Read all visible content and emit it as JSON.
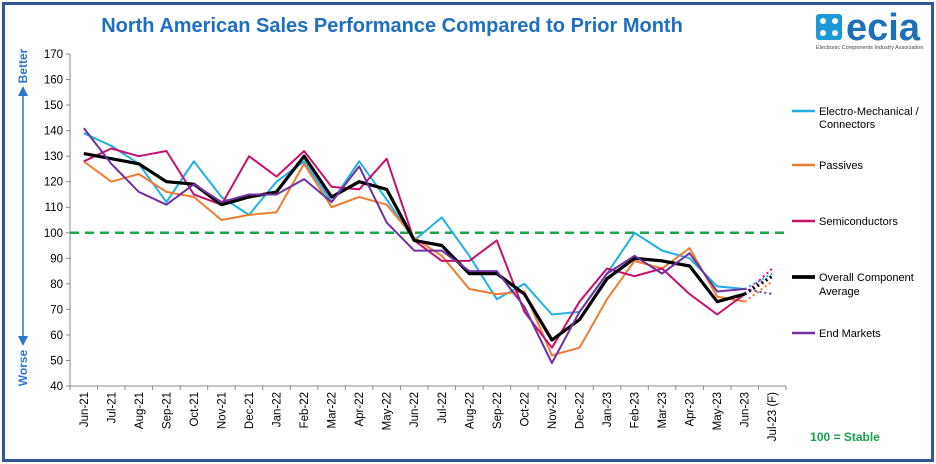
{
  "chart_data": {
    "type": "line",
    "title": "North American Sales Performance Compared to Prior Month",
    "xlabel": "",
    "ylabel": "",
    "ylim": [
      40,
      170
    ],
    "ystep": 10,
    "grid": false,
    "legend_position": "right",
    "axis_top_label": "Better",
    "axis_bottom_label": "Worse",
    "baseline": {
      "value": 100,
      "label": "100 = Stable",
      "color": "#1aa64a"
    },
    "categories": [
      "Jun-21",
      "Jul-21",
      "Aug-21",
      "Sep-21",
      "Oct-21",
      "Nov-21",
      "Dec-21",
      "Jan-22",
      "Feb-22",
      "Mar-22",
      "Apr-22",
      "May-22",
      "Jun-22",
      "Jul-22",
      "Aug-22",
      "Sep-22",
      "Oct-22",
      "Nov-22",
      "Dec-22",
      "Jan-23",
      "Feb-23",
      "Mar-23",
      "Apr-23",
      "May-23",
      "Jun-23",
      "Jul-23 (F)"
    ],
    "series": [
      {
        "name": "Electro-Mechanical / Connectors",
        "color": "#1fb0e6",
        "width": 2,
        "values": [
          139,
          134,
          127,
          112,
          128,
          114,
          107,
          120,
          128,
          112,
          128,
          113,
          97,
          106,
          91,
          74,
          80,
          68,
          69,
          84,
          100,
          93,
          90,
          79,
          78,
          84
        ]
      },
      {
        "name": "Passives",
        "color": "#ed7d31",
        "width": 2,
        "values": [
          128,
          120,
          123,
          116,
          114,
          105,
          107,
          108,
          127,
          110,
          114,
          111,
          98,
          91,
          78,
          76,
          77,
          52,
          55,
          74,
          89,
          86,
          94,
          75,
          73,
          81
        ]
      },
      {
        "name": "Semiconductors",
        "color": "#c8106e",
        "width": 2,
        "values": [
          128,
          133,
          130,
          132,
          115,
          111,
          130,
          122,
          132,
          118,
          117,
          129,
          97,
          89,
          89,
          97,
          69,
          55,
          73,
          86,
          83,
          86,
          76,
          68,
          76,
          86
        ]
      },
      {
        "name": "Overall Component Average",
        "color": "#000000",
        "width": 3.2,
        "values": [
          131,
          129,
          127,
          120,
          119,
          111,
          114,
          116,
          130,
          114,
          120,
          117,
          97,
          95,
          84,
          84,
          76,
          58,
          66,
          82,
          90,
          89,
          87,
          73,
          76,
          83
        ]
      },
      {
        "name": "End Markets",
        "color": "#7030a0",
        "width": 2,
        "values": [
          141,
          127,
          116,
          111,
          119,
          112,
          115,
          115,
          121,
          112,
          126,
          104,
          93,
          93,
          85,
          85,
          71,
          49,
          69,
          84,
          91,
          84,
          92,
          77,
          78,
          76
        ]
      }
    ]
  },
  "logo": {
    "word": "ecia",
    "subtitle": "Electronic Components Industry Association"
  }
}
